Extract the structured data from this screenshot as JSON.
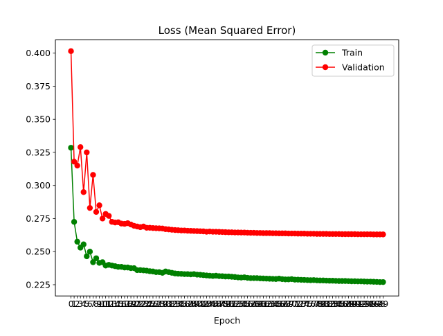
{
  "chart_data": {
    "type": "line",
    "title": "Loss (Mean Squared Error)",
    "xlabel": "Epoch",
    "ylabel": "",
    "x": [
      0,
      1,
      2,
      3,
      4,
      5,
      6,
      7,
      8,
      9,
      10,
      11,
      12,
      13,
      14,
      15,
      16,
      17,
      18,
      19,
      20,
      21,
      22,
      23,
      24,
      25,
      26,
      27,
      28,
      29,
      30,
      31,
      32,
      33,
      34,
      35,
      36,
      37,
      38,
      39,
      40,
      41,
      42,
      43,
      44,
      45,
      46,
      47,
      48,
      49,
      50,
      51,
      52,
      53,
      54,
      55,
      56,
      57,
      58,
      59,
      60,
      61,
      62,
      63,
      64,
      65,
      66,
      67,
      68,
      69,
      70,
      71,
      72,
      73,
      74,
      75,
      76,
      77,
      78,
      79,
      80,
      81,
      82,
      83,
      84,
      85,
      86,
      87,
      88,
      89,
      90,
      91,
      92,
      93,
      94,
      95,
      96,
      97,
      98,
      99
    ],
    "xlim": [
      -4.95,
      103.95
    ],
    "ylim": [
      0.2165,
      0.41
    ],
    "yticks": [
      0.225,
      0.25,
      0.275,
      0.3,
      0.325,
      0.35,
      0.375,
      0.4
    ],
    "ytick_labels": [
      "0.225",
      "0.250",
      "0.275",
      "0.300",
      "0.325",
      "0.350",
      "0.375",
      "0.400"
    ],
    "grid": false,
    "legend_position": "upper right",
    "series": [
      {
        "name": "Train",
        "color": "#008000",
        "marker": "circle",
        "values": [
          0.3285,
          0.2725,
          0.2575,
          0.253,
          0.2555,
          0.2465,
          0.25,
          0.242,
          0.245,
          0.2415,
          0.242,
          0.2395,
          0.24,
          0.2395,
          0.239,
          0.2385,
          0.2385,
          0.238,
          0.238,
          0.2375,
          0.2375,
          0.236,
          0.236,
          0.2358,
          0.2356,
          0.2352,
          0.235,
          0.2345,
          0.2345,
          0.234,
          0.235,
          0.2345,
          0.234,
          0.2335,
          0.2333,
          0.2332,
          0.233,
          0.233,
          0.2328,
          0.233,
          0.2326,
          0.2325,
          0.2322,
          0.232,
          0.2318,
          0.2316,
          0.2318,
          0.2315,
          0.2314,
          0.2312,
          0.2312,
          0.231,
          0.2308,
          0.2305,
          0.2304,
          0.2306,
          0.2302,
          0.23,
          0.23,
          0.23,
          0.2298,
          0.2297,
          0.2296,
          0.2295,
          0.2294,
          0.2293,
          0.2296,
          0.2292,
          0.229,
          0.229,
          0.2292,
          0.2288,
          0.2288,
          0.2287,
          0.2286,
          0.2285,
          0.2284,
          0.2285,
          0.2283,
          0.2282,
          0.2282,
          0.2281,
          0.228,
          0.228,
          0.2279,
          0.2278,
          0.2278,
          0.2278,
          0.2277,
          0.2276,
          0.2276,
          0.2275,
          0.2275,
          0.2274,
          0.2273,
          0.2273,
          0.2272,
          0.2271,
          0.227,
          0.227
        ]
      },
      {
        "name": "Validation",
        "color": "#ff0000",
        "marker": "circle",
        "values": [
          0.4015,
          0.318,
          0.315,
          0.329,
          0.295,
          0.325,
          0.283,
          0.308,
          0.28,
          0.285,
          0.275,
          0.2785,
          0.277,
          0.2725,
          0.272,
          0.2722,
          0.2712,
          0.271,
          0.2715,
          0.2705,
          0.2695,
          0.269,
          0.2685,
          0.269,
          0.268,
          0.268,
          0.2678,
          0.2677,
          0.2676,
          0.2675,
          0.267,
          0.2668,
          0.2665,
          0.2663,
          0.2662,
          0.266,
          0.266,
          0.2658,
          0.2657,
          0.2656,
          0.2655,
          0.2654,
          0.2653,
          0.265,
          0.2652,
          0.265,
          0.265,
          0.2649,
          0.2648,
          0.2647,
          0.2646,
          0.2646,
          0.2645,
          0.2645,
          0.2644,
          0.2644,
          0.2643,
          0.2642,
          0.2642,
          0.2641,
          0.2641,
          0.264,
          0.264,
          0.264,
          0.2639,
          0.2639,
          0.2638,
          0.2638,
          0.2638,
          0.2637,
          0.2637,
          0.2637,
          0.2636,
          0.2636,
          0.2636,
          0.2635,
          0.2635,
          0.2635,
          0.2634,
          0.2634,
          0.2634,
          0.2634,
          0.2633,
          0.2633,
          0.2633,
          0.2633,
          0.2632,
          0.2632,
          0.2632,
          0.2632,
          0.2632,
          0.2631,
          0.2631,
          0.2631,
          0.2631,
          0.2631,
          0.263,
          0.263,
          0.263,
          0.263
        ]
      }
    ]
  }
}
